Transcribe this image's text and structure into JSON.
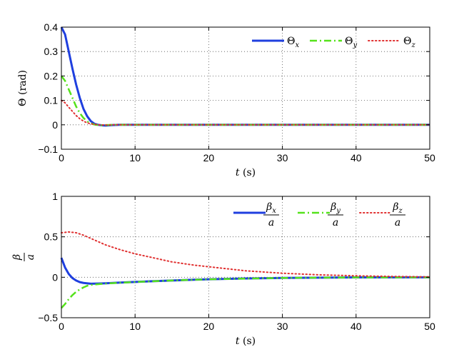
{
  "chart_data": [
    {
      "type": "line",
      "xlabel_var": "t",
      "xlabel_unit": "(s)",
      "ylabel": "Θ (rad)",
      "xlim": [
        0,
        50
      ],
      "ylim": [
        -0.1,
        0.4
      ],
      "xticks": [
        "0",
        "10",
        "20",
        "30",
        "40",
        "50"
      ],
      "yticks": [
        "−0.1",
        "0",
        "0.1",
        "0.2",
        "0.3",
        "0.4"
      ],
      "grid": true,
      "legend_placement": "top-right",
      "series": [
        {
          "name_base": "Θ",
          "name_sub": "x",
          "color": "#1f3fdf",
          "style": "solid",
          "x": [
            0,
            0.5,
            1,
            1.5,
            2,
            2.5,
            3,
            3.5,
            4,
            4.5,
            5,
            5.5,
            6,
            6.5,
            7,
            8,
            10,
            15,
            20,
            30,
            40,
            50
          ],
          "y": [
            0.4,
            0.37,
            0.3,
            0.23,
            0.165,
            0.11,
            0.065,
            0.035,
            0.015,
            0.004,
            0.0,
            -0.002,
            -0.003,
            -0.002,
            -0.001,
            0,
            0,
            0,
            0,
            0,
            0,
            0
          ]
        },
        {
          "name_base": "Θ",
          "name_sub": "y",
          "color": "#55e21b",
          "style": "dashdot",
          "x": [
            0,
            0.5,
            1,
            1.5,
            2,
            2.5,
            3,
            3.5,
            4,
            4.5,
            5,
            5.5,
            6,
            7,
            10,
            20,
            30,
            40,
            50
          ],
          "y": [
            0.2,
            0.18,
            0.145,
            0.11,
            0.075,
            0.048,
            0.028,
            0.014,
            0.006,
            0.001,
            -0.001,
            -0.002,
            -0.001,
            0,
            0,
            0,
            0,
            0,
            0
          ]
        },
        {
          "name_base": "Θ",
          "name_sub": "z",
          "color": "#e03030",
          "style": "dotted",
          "x": [
            0,
            0.5,
            1,
            1.5,
            2,
            2.5,
            3,
            3.5,
            4,
            5,
            6,
            7,
            10,
            20,
            30,
            40,
            50
          ],
          "y": [
            0.1,
            0.09,
            0.072,
            0.055,
            0.038,
            0.025,
            0.015,
            0.008,
            0.004,
            0.0,
            -0.001,
            0,
            0,
            0,
            0,
            0,
            0
          ]
        }
      ]
    },
    {
      "type": "line",
      "xlabel_var": "t",
      "xlabel_unit": "(s)",
      "ylabel_num": "β",
      "ylabel_den": "a",
      "xlim": [
        0,
        50
      ],
      "ylim": [
        -0.5,
        1
      ],
      "xticks": [
        "0",
        "10",
        "20",
        "30",
        "40",
        "50"
      ],
      "yticks": [
        "−0.5",
        "0",
        "0.5",
        "1"
      ],
      "grid": true,
      "legend_placement": "top-right",
      "series": [
        {
          "name_num": "β",
          "name_sub": "x",
          "name_den": "a",
          "color": "#1f3fdf",
          "style": "solid",
          "x": [
            0,
            0.5,
            1,
            1.5,
            2,
            2.5,
            3,
            4,
            5,
            6,
            7,
            8,
            10,
            12,
            15,
            18,
            20,
            25,
            30,
            40,
            50
          ],
          "y": [
            0.24,
            0.12,
            0.04,
            -0.01,
            -0.04,
            -0.06,
            -0.07,
            -0.08,
            -0.078,
            -0.074,
            -0.07,
            -0.066,
            -0.058,
            -0.05,
            -0.04,
            -0.03,
            -0.025,
            -0.015,
            -0.008,
            -0.002,
            0
          ]
        },
        {
          "name_num": "β",
          "name_sub": "y",
          "name_den": "a",
          "color": "#55e21b",
          "style": "dashdot",
          "x": [
            0,
            0.5,
            1,
            1.5,
            2,
            2.5,
            3,
            3.5,
            4,
            4.5,
            5,
            6,
            7,
            8,
            10,
            15,
            20,
            30,
            40,
            50
          ],
          "y": [
            -0.38,
            -0.33,
            -0.27,
            -0.22,
            -0.18,
            -0.15,
            -0.125,
            -0.105,
            -0.095,
            -0.09,
            -0.085,
            -0.078,
            -0.072,
            -0.067,
            -0.058,
            -0.04,
            -0.025,
            -0.008,
            -0.002,
            0
          ]
        },
        {
          "name_num": "β",
          "name_sub": "z",
          "name_den": "a",
          "color": "#e03030",
          "style": "dotted",
          "x": [
            0,
            1,
            2,
            3,
            4,
            5,
            6,
            8,
            10,
            12,
            15,
            18,
            20,
            25,
            30,
            35,
            40,
            45,
            50
          ],
          "y": [
            0.55,
            0.56,
            0.55,
            0.52,
            0.48,
            0.44,
            0.4,
            0.34,
            0.29,
            0.25,
            0.19,
            0.15,
            0.13,
            0.08,
            0.05,
            0.03,
            0.018,
            0.01,
            0.005
          ]
        }
      ]
    }
  ]
}
